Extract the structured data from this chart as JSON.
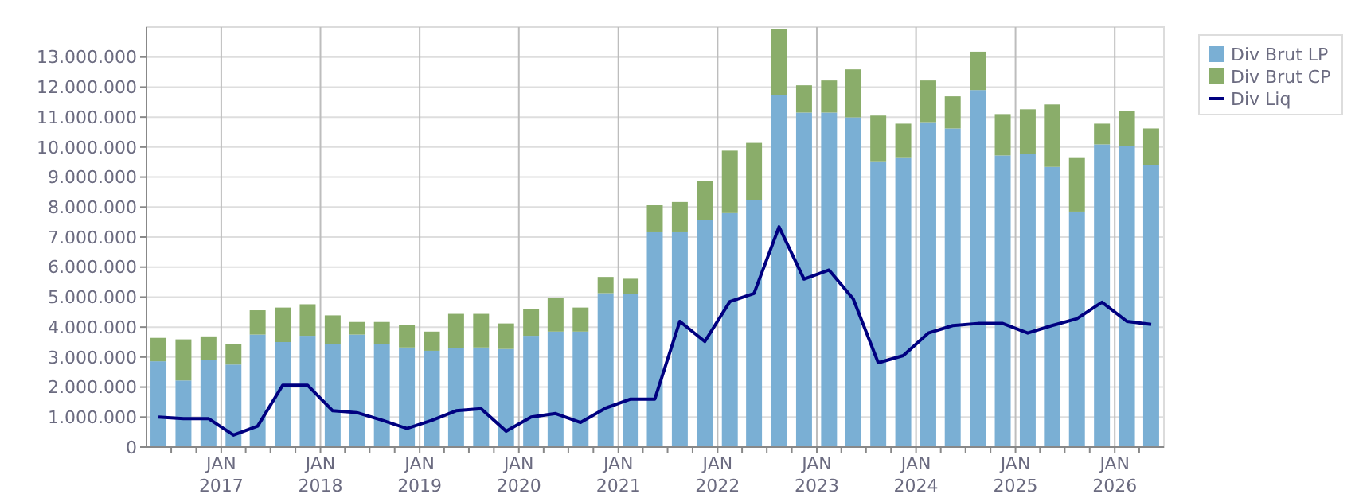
{
  "chart_data": {
    "type": "bar",
    "stacked": true,
    "grid": true,
    "legend": "top right",
    "x": [
      "2016-05-15",
      "2016-08-15",
      "2016-11-15",
      "2017-02-15",
      "2017-05-15",
      "2017-08-15",
      "2017-11-15",
      "2018-02-15",
      "2018-05-15",
      "2018-08-15",
      "2018-11-15",
      "2019-02-15",
      "2019-05-15",
      "2019-08-15",
      "2019-11-15",
      "2020-02-15",
      "2020-05-15",
      "2020-08-15",
      "2020-11-15",
      "2021-02-15",
      "2021-05-15",
      "2021-08-15",
      "2021-11-15",
      "2022-02-15",
      "2022-05-15",
      "2022-08-15",
      "2022-11-15",
      "2023-02-15",
      "2023-05-15",
      "2023-08-15",
      "2023-11-15",
      "2024-02-15",
      "2024-05-15",
      "2024-08-15",
      "2024-11-15",
      "2025-02-15",
      "2025-05-15",
      "2025-08-15",
      "2025-11-15",
      "2026-02-15",
      "2026-05-15"
    ],
    "series": [
      {
        "name": "Div Brut LP",
        "color": "#7aafd4",
        "values": [
          2860000,
          2220000,
          2900000,
          2750000,
          3750000,
          3500000,
          3710000,
          3430000,
          3750000,
          3430000,
          3320000,
          3210000,
          3290000,
          3320000,
          3270000,
          3710000,
          3850000,
          3850000,
          5130000,
          5100000,
          7160000,
          7160000,
          7580000,
          7800000,
          8220000,
          11740000,
          11150000,
          11150000,
          10990000,
          9500000,
          9660000,
          10830000,
          10620000,
          11900000,
          9720000,
          9770000,
          9340000,
          7850000,
          10090000,
          10040000,
          9400000
        ]
      },
      {
        "name": "Div Brut CP",
        "color": "#8aad6a",
        "values": [
          780000,
          1370000,
          790000,
          680000,
          810000,
          1150000,
          1050000,
          960000,
          420000,
          740000,
          750000,
          640000,
          1150000,
          1120000,
          850000,
          890000,
          1120000,
          800000,
          540000,
          510000,
          900000,
          1010000,
          1280000,
          2080000,
          1920000,
          2190000,
          910000,
          1070000,
          1600000,
          1550000,
          1120000,
          1390000,
          1070000,
          1280000,
          1380000,
          1490000,
          2080000,
          1810000,
          690000,
          1170000,
          1220000
        ]
      },
      {
        "name": "Div Liq",
        "type": "line",
        "color": "#000080",
        "marker": "none",
        "line_style": "solid",
        "values": [
          1000000,
          950000,
          950000,
          400000,
          700000,
          2060000,
          2060000,
          1210000,
          1150000,
          900000,
          620000,
          890000,
          1210000,
          1280000,
          530000,
          1000000,
          1120000,
          820000,
          1300000,
          1600000,
          1600000,
          4190000,
          3520000,
          4850000,
          5120000,
          7340000,
          5600000,
          5900000,
          4940000,
          2810000,
          3050000,
          3800000,
          4050000,
          4120000,
          4120000,
          3800000,
          4050000,
          4280000,
          4830000,
          4190000,
          4090000
        ]
      }
    ],
    "xlim": [
      "2016-04-01",
      "2026-07-01"
    ],
    "xticks": [
      {
        "value": "2016-07-01",
        "label": null
      },
      {
        "value": "2016-10-01",
        "label": null
      },
      {
        "value": "2017-01-01",
        "label": "JAN 2017"
      },
      {
        "value": "2017-04-01",
        "label": null
      },
      {
        "value": "2017-07-01",
        "label": null
      },
      {
        "value": "2017-10-01",
        "label": null
      },
      {
        "value": "2018-01-01",
        "label": "JAN 2018"
      },
      {
        "value": "2018-04-01",
        "label": null
      },
      {
        "value": "2018-07-01",
        "label": null
      },
      {
        "value": "2018-10-01",
        "label": null
      },
      {
        "value": "2019-01-01",
        "label": "JAN 2019"
      },
      {
        "value": "2019-04-01",
        "label": null
      },
      {
        "value": "2019-07-01",
        "label": null
      },
      {
        "value": "2019-10-01",
        "label": null
      },
      {
        "value": "2020-01-01",
        "label": "JAN 2020"
      },
      {
        "value": "2020-04-01",
        "label": null
      },
      {
        "value": "2020-07-01",
        "label": null
      },
      {
        "value": "2020-10-01",
        "label": null
      },
      {
        "value": "2021-01-01",
        "label": "JAN 2021"
      },
      {
        "value": "2021-04-01",
        "label": null
      },
      {
        "value": "2021-07-01",
        "label": null
      },
      {
        "value": "2021-10-01",
        "label": null
      },
      {
        "value": "2022-01-01",
        "label": "JAN 2022"
      },
      {
        "value": "2022-04-01",
        "label": null
      },
      {
        "value": "2022-07-01",
        "label": null
      },
      {
        "value": "2022-10-01",
        "label": null
      },
      {
        "value": "2023-01-01",
        "label": "JAN 2023"
      },
      {
        "value": "2023-04-01",
        "label": null
      },
      {
        "value": "2023-07-01",
        "label": null
      },
      {
        "value": "2023-10-01",
        "label": null
      },
      {
        "value": "2024-01-01",
        "label": "JAN 2024"
      },
      {
        "value": "2024-04-01",
        "label": null
      },
      {
        "value": "2024-07-01",
        "label": null
      },
      {
        "value": "2024-10-01",
        "label": null
      },
      {
        "value": "2025-01-01",
        "label": "JAN 2025"
      },
      {
        "value": "2025-04-01",
        "label": null
      },
      {
        "value": "2025-07-01",
        "label": null
      },
      {
        "value": "2025-10-01",
        "label": null
      },
      {
        "value": "2026-01-01",
        "label": "JAN 2026"
      },
      {
        "value": "2026-04-01",
        "label": null
      }
    ],
    "ylim": [
      0,
      14000000
    ],
    "yticks": [
      {
        "value": 0,
        "label": "0"
      },
      {
        "value": 1000000,
        "label": "1.000.000"
      },
      {
        "value": 2000000,
        "label": "2.000.000"
      },
      {
        "value": 3000000,
        "label": "3.000.000"
      },
      {
        "value": 4000000,
        "label": "4.000.000"
      },
      {
        "value": 5000000,
        "label": "5.000.000"
      },
      {
        "value": 6000000,
        "label": "6.000.000"
      },
      {
        "value": 7000000,
        "label": "7.000.000"
      },
      {
        "value": 8000000,
        "label": "8.000.000"
      },
      {
        "value": 9000000,
        "label": "9.000.000"
      },
      {
        "value": 10000000,
        "label": "10.000.000"
      },
      {
        "value": 11000000,
        "label": "11.000.000"
      },
      {
        "value": 12000000,
        "label": "12.000.000"
      },
      {
        "value": 13000000,
        "label": "13.000.000"
      }
    ]
  }
}
